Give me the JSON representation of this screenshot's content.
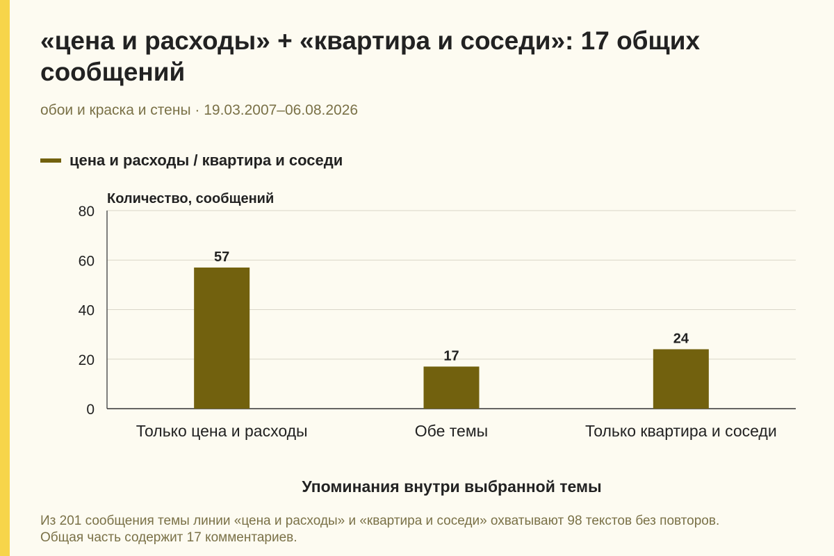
{
  "header": {
    "title": "«цена и расходы» + «квартира и соседи»: 17 общих сообщений",
    "subtitle": "обои и краска и стены · 19.03.2007–06.08.2026"
  },
  "footer": {
    "note": "Из 201 сообщения темы линии «цена и расходы» и «квартира и соседи» охватывают 98 текстов без повторов. Общая часть содержит 17 комментариев."
  },
  "chart_data": {
    "type": "bar",
    "categories": [
      "Только цена и расходы",
      "Обе темы",
      "Только квартира и соседи"
    ],
    "series": [
      {
        "name": "цена и расходы / квартира и соседи",
        "values": [
          57,
          17,
          24
        ],
        "color": "#72610e"
      }
    ],
    "ylabel": "Количество, сообщений",
    "xlabel": "Упоминания внутри выбранной темы",
    "ylim": [
      0,
      80
    ],
    "yticks": [
      0,
      20,
      40,
      60,
      80
    ],
    "grid": true,
    "legend": "top-left",
    "data_labels": true
  }
}
